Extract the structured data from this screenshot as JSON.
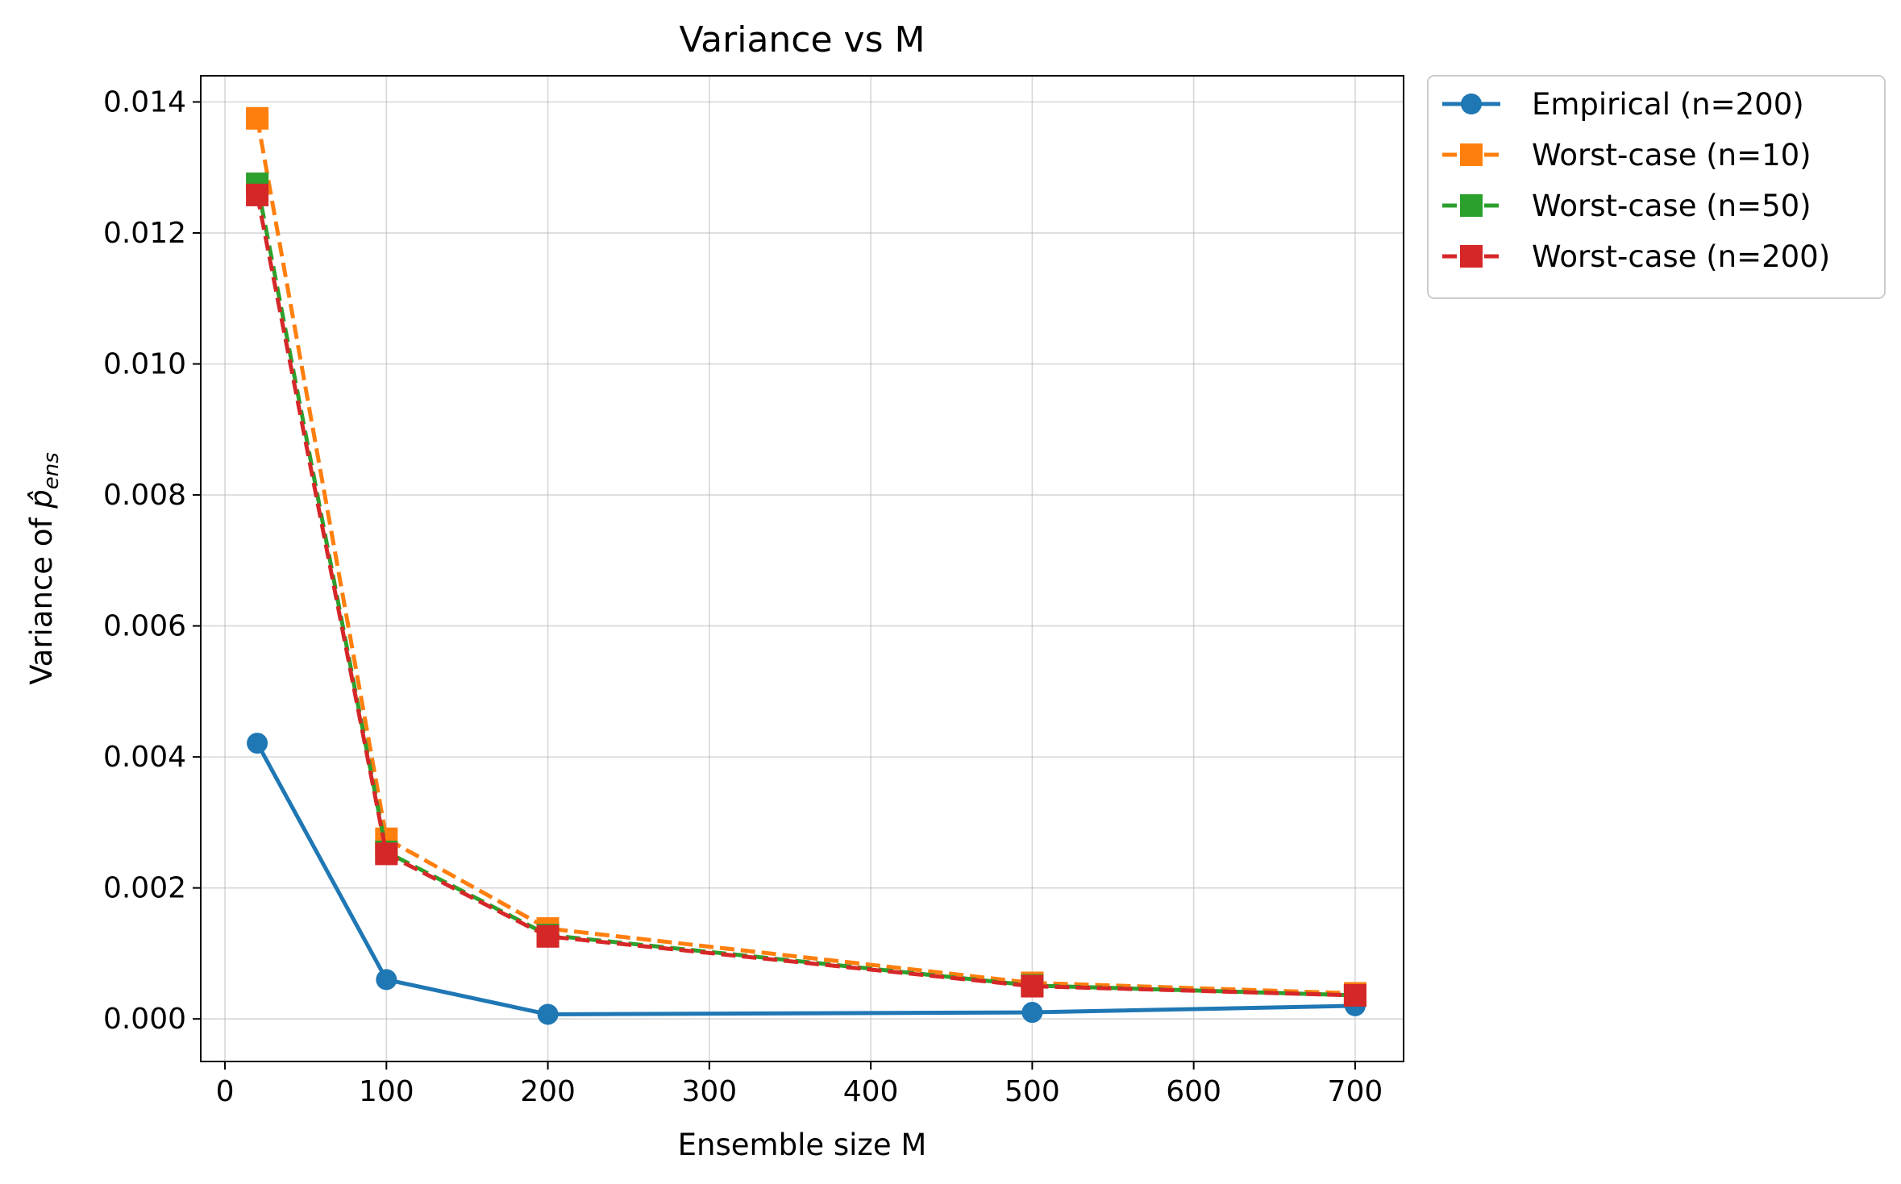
{
  "chart_data": {
    "type": "line",
    "title": "Variance vs M",
    "xlabel": "Ensemble size M",
    "ylabel_prefix": "Variance of ",
    "ylabel_symbol": "p̂",
    "ylabel_subscript": "ens",
    "xlim": [
      -15,
      730
    ],
    "ylim": [
      -0.00065,
      0.0144
    ],
    "xticks": [
      0,
      100,
      200,
      300,
      400,
      500,
      600,
      700
    ],
    "xtick_labels": [
      "0",
      "100",
      "200",
      "300",
      "400",
      "500",
      "600",
      "700"
    ],
    "yticks": [
      0.0,
      0.002,
      0.004,
      0.006,
      0.008,
      0.01,
      0.012,
      0.014
    ],
    "ytick_labels": [
      "0.000",
      "0.002",
      "0.004",
      "0.006",
      "0.008",
      "0.010",
      "0.012",
      "0.014"
    ],
    "grid": true,
    "legend_position": "outside-top-right",
    "x": [
      20,
      100,
      200,
      500,
      700
    ],
    "series": [
      {
        "name": "Empirical (n=200)",
        "color": "#1f77b4",
        "marker": "circle",
        "linestyle": "solid",
        "values": [
          0.00421,
          0.0006,
          7e-05,
          0.0001,
          0.0002
        ]
      },
      {
        "name": "Worst-case (n=10)",
        "color": "#ff7f0e",
        "marker": "square",
        "linestyle": "dashed",
        "values": [
          0.01375,
          0.00275,
          0.00138,
          0.00055,
          0.00039
        ]
      },
      {
        "name": "Worst-case (n=50)",
        "color": "#2ca02c",
        "marker": "square",
        "linestyle": "dashed",
        "values": [
          0.01275,
          0.00255,
          0.00128,
          0.00051,
          0.00036
        ]
      },
      {
        "name": "Worst-case (n=200)",
        "color": "#d62728",
        "marker": "square",
        "linestyle": "dashed",
        "values": [
          0.01258,
          0.00252,
          0.00126,
          0.0005,
          0.00036
        ]
      }
    ]
  }
}
